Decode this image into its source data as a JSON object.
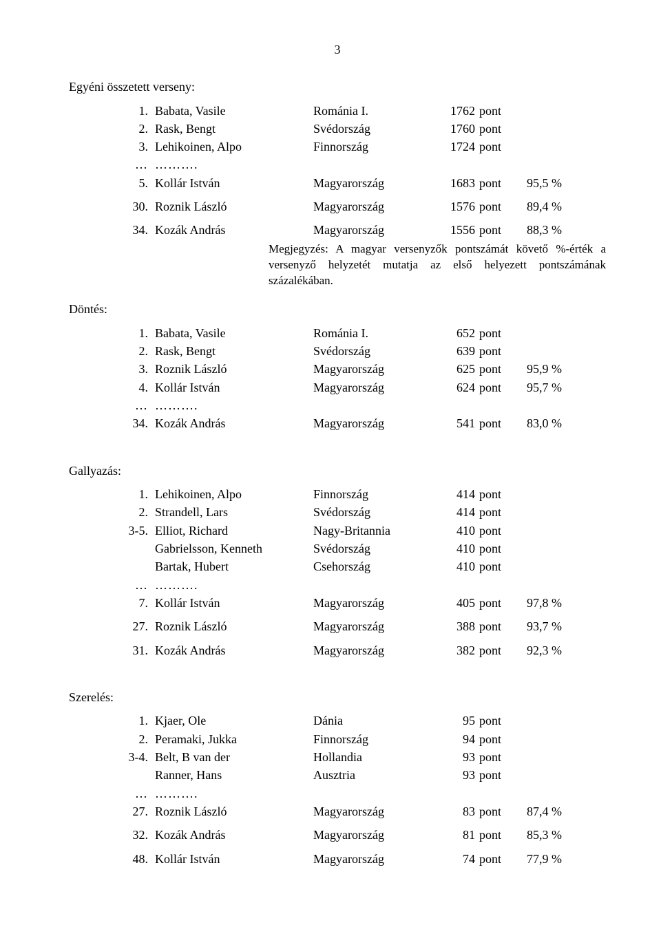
{
  "page_number": "3",
  "ellipsis_rank": "…",
  "ellipsis_dots": "……….",
  "unit_label": "pont",
  "sections": {
    "egyeni": {
      "title": "Egyéni összetett verseny:",
      "rows": [
        {
          "rank": "1.",
          "name": "Babata, Vasile",
          "country": "Románia I.",
          "score": "1762",
          "pct": ""
        },
        {
          "rank": "2.",
          "name": "Rask, Bengt",
          "country": "Svédország",
          "score": "1760",
          "pct": ""
        },
        {
          "rank": "3.",
          "name": "Lehikoinen, Alpo",
          "country": "Finnország",
          "score": "1724",
          "pct": ""
        }
      ],
      "after": [
        {
          "rank": "5.",
          "name": "Kollár István",
          "country": "Magyarország",
          "score": "1683",
          "pct": "95,5 %"
        },
        {
          "rank": "30.",
          "name": "Roznik László",
          "country": "Magyarország",
          "score": "1576",
          "pct": "89,4 %"
        },
        {
          "rank": "34.",
          "name": "Kozák András",
          "country": "Magyarország",
          "score": "1556",
          "pct": "88,3 %"
        }
      ],
      "note": "Megjegyzés: A magyar versenyzők pontszámát követő %-érték a versenyző helyzetét mutatja az első helyezett pontszámának százalékában."
    },
    "dontes": {
      "title": "Döntés:",
      "rows": [
        {
          "rank": "1.",
          "name": "Babata, Vasile",
          "country": "Románia I.",
          "score": "652",
          "pct": ""
        },
        {
          "rank": "2.",
          "name": "Rask, Bengt",
          "country": "Svédország",
          "score": "639",
          "pct": ""
        },
        {
          "rank": "3.",
          "name": "Roznik László",
          "country": "Magyarország",
          "score": "625",
          "pct": "95,9 %"
        },
        {
          "rank": "4.",
          "name": "Kollár István",
          "country": "Magyarország",
          "score": "624",
          "pct": "95,7 %"
        }
      ],
      "after": [
        {
          "rank": "34.",
          "name": "Kozák András",
          "country": "Magyarország",
          "score": "541",
          "pct": "83,0 %"
        }
      ]
    },
    "gallyazas": {
      "title": "Gallyazás:",
      "rows": [
        {
          "rank": "1.",
          "name": "Lehikoinen, Alpo",
          "country": "Finnország",
          "score": "414",
          "pct": ""
        },
        {
          "rank": "2.",
          "name": "Strandell, Lars",
          "country": "Svédország",
          "score": "414",
          "pct": ""
        },
        {
          "rank": "3-5.",
          "name": "Elliot, Richard",
          "country": "Nagy-Britannia",
          "score": "410",
          "pct": ""
        },
        {
          "rank": "",
          "name": "Gabrielsson, Kenneth",
          "country": "Svédország",
          "score": "410",
          "pct": ""
        },
        {
          "rank": "",
          "name": "Bartak, Hubert",
          "country": "Csehország",
          "score": "410",
          "pct": ""
        }
      ],
      "after": [
        {
          "rank": "7.",
          "name": "Kollár István",
          "country": "Magyarország",
          "score": "405",
          "pct": "97,8 %"
        },
        {
          "rank": "27.",
          "name": "Roznik László",
          "country": "Magyarország",
          "score": "388",
          "pct": "93,7 %"
        },
        {
          "rank": "31.",
          "name": "Kozák András",
          "country": "Magyarország",
          "score": "382",
          "pct": "92,3 %"
        }
      ]
    },
    "szereles": {
      "title": "Szerelés:",
      "rows": [
        {
          "rank": "1.",
          "name": "Kjaer, Ole",
          "country": "Dánia",
          "score": "95",
          "pct": ""
        },
        {
          "rank": "2.",
          "name": "Peramaki, Jukka",
          "country": "Finnország",
          "score": "94",
          "pct": ""
        },
        {
          "rank": "3-4.",
          "name": "Belt, B van der",
          "country": "Hollandia",
          "score": "93",
          "pct": ""
        },
        {
          "rank": "",
          "name": "Ranner, Hans",
          "country": "Ausztria",
          "score": "93",
          "pct": ""
        }
      ],
      "after": [
        {
          "rank": "27.",
          "name": "Roznik László",
          "country": "Magyarország",
          "score": "83",
          "pct": "87,4 %"
        },
        {
          "rank": "32.",
          "name": "Kozák András",
          "country": "Magyarország",
          "score": "81",
          "pct": "85,3 %"
        },
        {
          "rank": "48.",
          "name": "Kollár István",
          "country": "Magyarország",
          "score": "74",
          "pct": "77,9 %"
        }
      ]
    }
  }
}
